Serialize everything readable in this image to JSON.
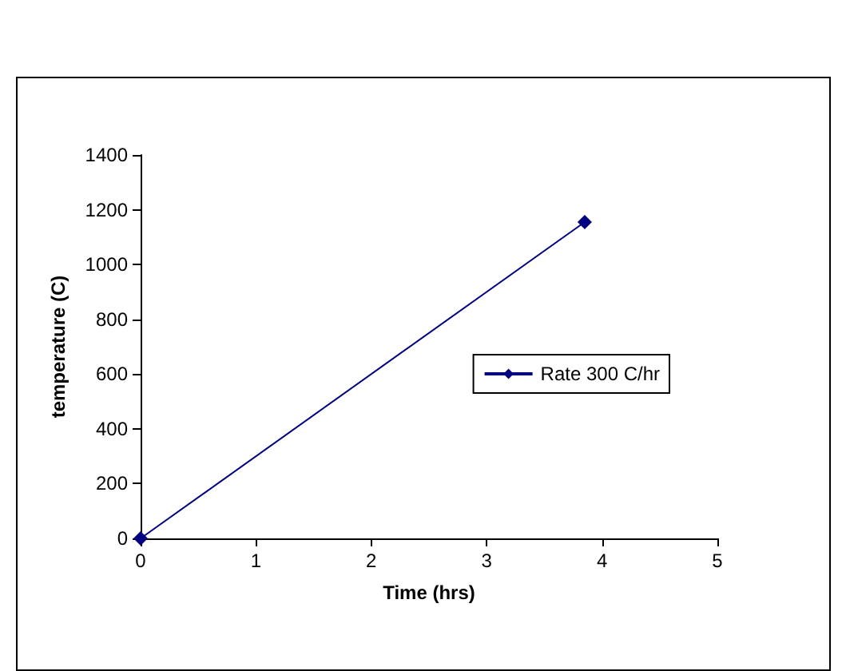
{
  "chart_data": {
    "type": "line",
    "xlabel": "Time (hrs)",
    "ylabel": "temperature (C)",
    "x": [
      0,
      3.85
    ],
    "series": [
      {
        "name": "Rate 300 C/hr",
        "color": "#000080",
        "values": [
          0,
          1155
        ]
      }
    ],
    "xlim": [
      0,
      5
    ],
    "xticks": [
      0,
      1,
      2,
      3,
      4,
      5
    ],
    "ylim": [
      0,
      1400
    ],
    "yticks": [
      0,
      200,
      400,
      600,
      800,
      1000,
      1200,
      1400
    ],
    "grid": false,
    "legend": "right",
    "marker": "diamond",
    "line_style": "solid"
  }
}
